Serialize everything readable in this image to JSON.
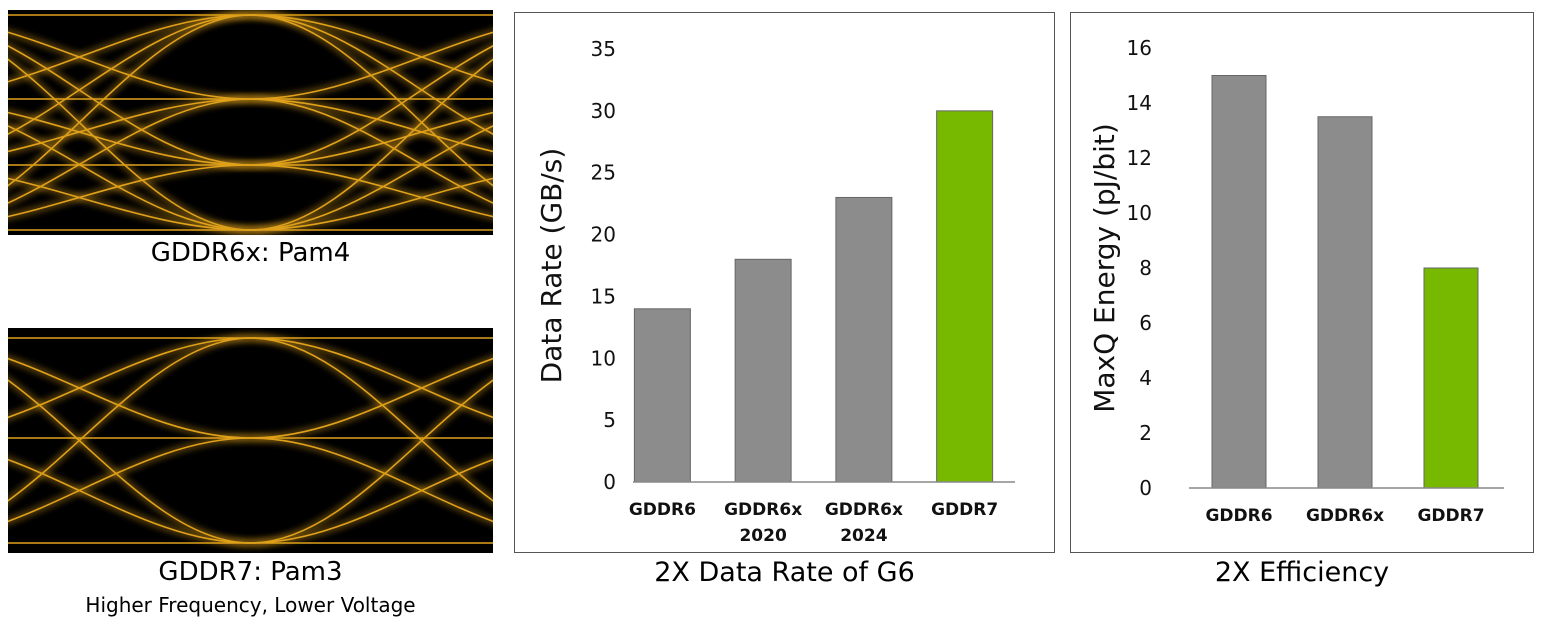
{
  "eye_diagrams": {
    "top_caption": "GDDR6x: Pam4",
    "bottom_caption": "GDDR7: Pam3",
    "bottom_subcaption": "Higher Frequency, Lower Voltage",
    "trace_color": "#e0a11a"
  },
  "charts_meta": {
    "bar_gray": "#8c8c8c",
    "bar_green": "#76b900"
  },
  "chart_data": [
    {
      "type": "bar",
      "title": "2X Data Rate of G6",
      "xlabel": "",
      "ylabel": "Data Rate (GB/s)",
      "ylim": [
        0,
        35
      ],
      "yticks": [
        0,
        5,
        10,
        15,
        20,
        25,
        30,
        35
      ],
      "categories": [
        [
          "GDDR6"
        ],
        [
          "GDDR6x",
          "2020"
        ],
        [
          "GDDR6x",
          "2024"
        ],
        [
          "GDDR7"
        ]
      ],
      "values": [
        14,
        18,
        23,
        30
      ],
      "highlight_index": 3
    },
    {
      "type": "bar",
      "title": "2X Efficiency",
      "xlabel": "",
      "ylabel": "MaxQ Energy (pJ/bit)",
      "ylim": [
        0,
        16
      ],
      "yticks": [
        0,
        2,
        4,
        6,
        8,
        10,
        12,
        14,
        16
      ],
      "categories": [
        [
          "GDDR6"
        ],
        [
          "GDDR6x"
        ],
        [
          "GDDR7"
        ]
      ],
      "values": [
        15,
        13.5,
        8
      ],
      "highlight_index": 2
    }
  ]
}
